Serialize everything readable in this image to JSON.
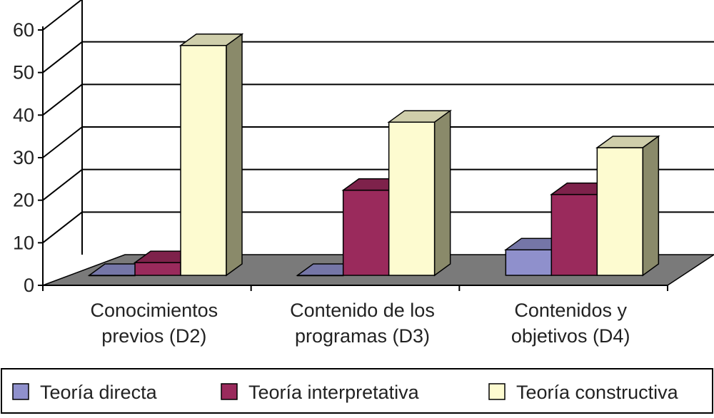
{
  "chart_data": {
    "type": "bar",
    "categories": [
      [
        "Conocimientos",
        "previos (D2)"
      ],
      [
        "Contenido de los",
        "programas (D3)"
      ],
      [
        "Contenidos y",
        "objetivos (D4)"
      ]
    ],
    "series": [
      {
        "name": "Teoría directa",
        "values": [
          0,
          0,
          6
        ],
        "color": "#8f90cc"
      },
      {
        "name": "Teoría interpretativa",
        "values": [
          3,
          20,
          19
        ],
        "color": "#9a2a5c"
      },
      {
        "name": "Teoría constructiva",
        "values": [
          54,
          36,
          30
        ],
        "color": "#fdfbd0"
      }
    ],
    "yticks": [
      "0",
      "10",
      "20",
      "30",
      "40",
      "50",
      "60"
    ],
    "ylim": [
      0,
      60
    ],
    "grid": true,
    "legend_position": "bottom",
    "three_d": true
  }
}
